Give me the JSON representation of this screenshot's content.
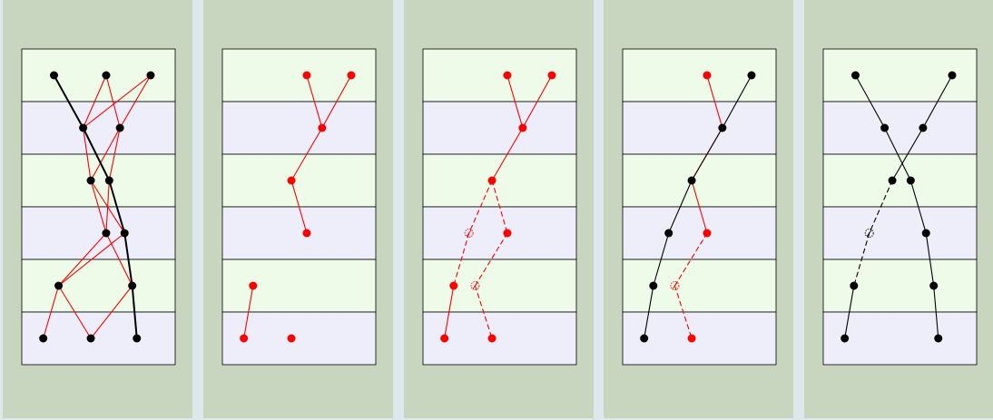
{
  "colors": {
    "page_bg": "#dce8ec",
    "panel_bg": "#c8d6c0",
    "row_green": "#eefbe9",
    "row_lavender": "#eeeefb",
    "red": "#ff0000",
    "black": "#000000"
  },
  "layers": 6,
  "panels": [
    {
      "id": "panel-1",
      "nodes": [
        {
          "id": "a",
          "layer": 0,
          "pos": 0.21,
          "color": "black"
        },
        {
          "id": "b",
          "layer": 0,
          "pos": 0.55,
          "color": "black"
        },
        {
          "id": "c",
          "layer": 0,
          "pos": 0.84,
          "color": "black"
        },
        {
          "id": "d",
          "layer": 1,
          "pos": 0.4,
          "color": "black"
        },
        {
          "id": "e",
          "layer": 1,
          "pos": 0.64,
          "color": "black"
        },
        {
          "id": "f",
          "layer": 2,
          "pos": 0.45,
          "color": "black"
        },
        {
          "id": "g",
          "layer": 2,
          "pos": 0.57,
          "color": "black"
        },
        {
          "id": "h",
          "layer": 3,
          "pos": 0.55,
          "color": "black"
        },
        {
          "id": "i",
          "layer": 3,
          "pos": 0.67,
          "color": "black"
        },
        {
          "id": "j",
          "layer": 4,
          "pos": 0.24,
          "color": "black"
        },
        {
          "id": "k",
          "layer": 4,
          "pos": 0.72,
          "color": "black"
        },
        {
          "id": "l",
          "layer": 5,
          "pos": 0.14,
          "color": "black"
        },
        {
          "id": "m",
          "layer": 5,
          "pos": 0.45,
          "color": "black"
        },
        {
          "id": "n",
          "layer": 5,
          "pos": 0.75,
          "color": "black"
        }
      ],
      "edges": [
        {
          "from": "b",
          "to": "d",
          "color": "red",
          "style": "solid"
        },
        {
          "from": "b",
          "to": "e",
          "color": "red",
          "style": "solid"
        },
        {
          "from": "c",
          "to": "d",
          "color": "red",
          "style": "solid"
        },
        {
          "from": "c",
          "to": "e",
          "color": "red",
          "style": "solid"
        },
        {
          "from": "d",
          "to": "f",
          "color": "red",
          "style": "solid"
        },
        {
          "from": "d",
          "to": "g",
          "color": "red",
          "style": "solid"
        },
        {
          "from": "e",
          "to": "f",
          "color": "red",
          "style": "solid"
        },
        {
          "from": "e",
          "to": "g",
          "color": "red",
          "style": "solid"
        },
        {
          "from": "f",
          "to": "h",
          "color": "red",
          "style": "solid"
        },
        {
          "from": "f",
          "to": "i",
          "color": "red",
          "style": "solid"
        },
        {
          "from": "g",
          "to": "h",
          "color": "red",
          "style": "solid"
        },
        {
          "from": "h",
          "to": "j",
          "color": "red",
          "style": "solid"
        },
        {
          "from": "i",
          "to": "j",
          "color": "red",
          "style": "solid"
        },
        {
          "from": "h",
          "to": "k",
          "color": "red",
          "style": "solid"
        },
        {
          "from": "j",
          "to": "l",
          "color": "red",
          "style": "solid"
        },
        {
          "from": "j",
          "to": "m",
          "color": "red",
          "style": "solid"
        },
        {
          "from": "k",
          "to": "m",
          "color": "red",
          "style": "solid"
        },
        {
          "from": "a",
          "to": "d",
          "color": "black",
          "style": "solid"
        },
        {
          "from": "d",
          "to": "g",
          "color": "black",
          "style": "solid"
        },
        {
          "from": "g",
          "to": "i",
          "color": "black",
          "style": "solid"
        },
        {
          "from": "i",
          "to": "k",
          "color": "black",
          "style": "solid"
        },
        {
          "from": "k",
          "to": "n",
          "color": "black",
          "style": "solid"
        }
      ]
    },
    {
      "id": "panel-2",
      "nodes": [
        {
          "id": "a",
          "layer": 0,
          "pos": 0.55,
          "color": "red"
        },
        {
          "id": "b",
          "layer": 0,
          "pos": 0.84,
          "color": "red"
        },
        {
          "id": "c",
          "layer": 1,
          "pos": 0.65,
          "color": "red"
        },
        {
          "id": "d",
          "layer": 2,
          "pos": 0.45,
          "color": "red"
        },
        {
          "id": "e",
          "layer": 3,
          "pos": 0.55,
          "color": "red"
        },
        {
          "id": "f",
          "layer": 4,
          "pos": 0.2,
          "color": "red"
        },
        {
          "id": "g",
          "layer": 5,
          "pos": 0.14,
          "color": "red"
        },
        {
          "id": "h",
          "layer": 5,
          "pos": 0.45,
          "color": "red"
        }
      ],
      "edges": [
        {
          "from": "a",
          "to": "c",
          "color": "red",
          "style": "solid"
        },
        {
          "from": "b",
          "to": "c",
          "color": "red",
          "style": "solid"
        },
        {
          "from": "c",
          "to": "d",
          "color": "red",
          "style": "solid"
        },
        {
          "from": "d",
          "to": "e",
          "color": "red",
          "style": "solid"
        },
        {
          "from": "f",
          "to": "g",
          "color": "red",
          "style": "solid"
        }
      ]
    },
    {
      "id": "panel-3",
      "nodes": [
        {
          "id": "a",
          "layer": 0,
          "pos": 0.55,
          "color": "red"
        },
        {
          "id": "b",
          "layer": 0,
          "pos": 0.84,
          "color": "red"
        },
        {
          "id": "c",
          "layer": 1,
          "pos": 0.65,
          "color": "red"
        },
        {
          "id": "d",
          "layer": 2,
          "pos": 0.45,
          "color": "red"
        },
        {
          "id": "e",
          "layer": 3,
          "pos": 0.3,
          "color": "red",
          "hollow": true
        },
        {
          "id": "f",
          "layer": 3,
          "pos": 0.55,
          "color": "red"
        },
        {
          "id": "g",
          "layer": 4,
          "pos": 0.2,
          "color": "red"
        },
        {
          "id": "h",
          "layer": 4,
          "pos": 0.34,
          "color": "red",
          "hollow": true
        },
        {
          "id": "i",
          "layer": 5,
          "pos": 0.14,
          "color": "red"
        },
        {
          "id": "j",
          "layer": 5,
          "pos": 0.45,
          "color": "red"
        }
      ],
      "edges": [
        {
          "from": "a",
          "to": "c",
          "color": "red",
          "style": "solid"
        },
        {
          "from": "b",
          "to": "c",
          "color": "red",
          "style": "solid"
        },
        {
          "from": "c",
          "to": "d",
          "color": "red",
          "style": "solid"
        },
        {
          "from": "d",
          "to": "e",
          "color": "red",
          "style": "dashed"
        },
        {
          "from": "d",
          "to": "f",
          "color": "red",
          "style": "dashed"
        },
        {
          "from": "e",
          "to": "g",
          "color": "red",
          "style": "dashed"
        },
        {
          "from": "f",
          "to": "h",
          "color": "red",
          "style": "dashed"
        },
        {
          "from": "g",
          "to": "i",
          "color": "red",
          "style": "solid"
        },
        {
          "from": "h",
          "to": "j",
          "color": "red",
          "style": "dashed"
        }
      ]
    },
    {
      "id": "panel-4",
      "nodes": [
        {
          "id": "a",
          "layer": 0,
          "pos": 0.55,
          "color": "red"
        },
        {
          "id": "b",
          "layer": 0,
          "pos": 0.84,
          "color": "black"
        },
        {
          "id": "c",
          "layer": 1,
          "pos": 0.65,
          "color": "black"
        },
        {
          "id": "d",
          "layer": 2,
          "pos": 0.45,
          "color": "black"
        },
        {
          "id": "e",
          "layer": 3,
          "pos": 0.3,
          "color": "black"
        },
        {
          "id": "f",
          "layer": 3,
          "pos": 0.55,
          "color": "red"
        },
        {
          "id": "g",
          "layer": 4,
          "pos": 0.2,
          "color": "black"
        },
        {
          "id": "h",
          "layer": 4,
          "pos": 0.34,
          "color": "red",
          "hollow": true
        },
        {
          "id": "i",
          "layer": 5,
          "pos": 0.14,
          "color": "black"
        },
        {
          "id": "j",
          "layer": 5,
          "pos": 0.45,
          "color": "red"
        }
      ],
      "edges": [
        {
          "from": "a",
          "to": "c",
          "color": "red",
          "style": "solid"
        },
        {
          "from": "b",
          "to": "c",
          "color": "black",
          "style": "solid"
        },
        {
          "from": "c",
          "to": "d",
          "color": "red",
          "style": "solid"
        },
        {
          "from": "c",
          "to": "d",
          "color": "black",
          "style": "solid"
        },
        {
          "from": "d",
          "to": "e",
          "color": "black",
          "style": "solid"
        },
        {
          "from": "d",
          "to": "f",
          "color": "red",
          "style": "solid"
        },
        {
          "from": "e",
          "to": "g",
          "color": "black",
          "style": "solid"
        },
        {
          "from": "f",
          "to": "h",
          "color": "red",
          "style": "dashed"
        },
        {
          "from": "g",
          "to": "i",
          "color": "black",
          "style": "solid"
        },
        {
          "from": "h",
          "to": "j",
          "color": "red",
          "style": "dashed"
        }
      ]
    },
    {
      "id": "panel-5",
      "nodes": [
        {
          "id": "a",
          "layer": 0,
          "pos": 0.21,
          "color": "black"
        },
        {
          "id": "b",
          "layer": 0,
          "pos": 0.84,
          "color": "black"
        },
        {
          "id": "c",
          "layer": 1,
          "pos": 0.4,
          "color": "black"
        },
        {
          "id": "d",
          "layer": 1,
          "pos": 0.65,
          "color": "black"
        },
        {
          "id": "e",
          "layer": 2,
          "pos": 0.45,
          "color": "black"
        },
        {
          "id": "f",
          "layer": 2,
          "pos": 0.57,
          "color": "black"
        },
        {
          "id": "g",
          "layer": 3,
          "pos": 0.3,
          "color": "black",
          "hollow": true
        },
        {
          "id": "h",
          "layer": 3,
          "pos": 0.67,
          "color": "black"
        },
        {
          "id": "i",
          "layer": 4,
          "pos": 0.2,
          "color": "black"
        },
        {
          "id": "j",
          "layer": 4,
          "pos": 0.72,
          "color": "black"
        },
        {
          "id": "k",
          "layer": 5,
          "pos": 0.14,
          "color": "black"
        },
        {
          "id": "l",
          "layer": 5,
          "pos": 0.75,
          "color": "black"
        }
      ],
      "edges": [
        {
          "from": "a",
          "to": "c",
          "color": "black",
          "style": "solid"
        },
        {
          "from": "b",
          "to": "d",
          "color": "black",
          "style": "solid"
        },
        {
          "from": "c",
          "to": "f",
          "color": "black",
          "style": "solid"
        },
        {
          "from": "d",
          "to": "e",
          "color": "black",
          "style": "solid"
        },
        {
          "from": "e",
          "to": "g",
          "color": "black",
          "style": "dashed"
        },
        {
          "from": "f",
          "to": "h",
          "color": "black",
          "style": "solid"
        },
        {
          "from": "g",
          "to": "i",
          "color": "black",
          "style": "dashed"
        },
        {
          "from": "h",
          "to": "j",
          "color": "black",
          "style": "solid"
        },
        {
          "from": "i",
          "to": "k",
          "color": "black",
          "style": "solid"
        },
        {
          "from": "j",
          "to": "l",
          "color": "black",
          "style": "solid"
        }
      ]
    }
  ]
}
